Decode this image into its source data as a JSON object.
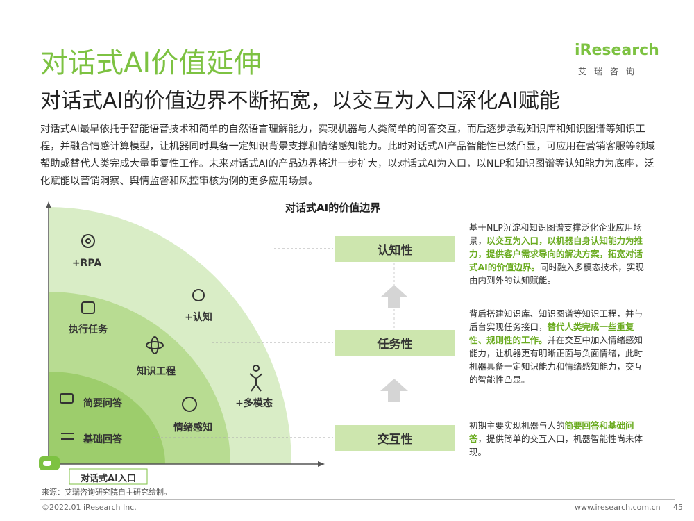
{
  "header": {
    "title": "对话式AI价值延伸",
    "subtitle": "对话式AI的价值边界不断拓宽，以交互为入口深化AI赋能",
    "logo": "iResearch",
    "logo_cn": "艾瑞咨询"
  },
  "intro": "对话式AI最早依托于智能语音技术和简单的自然语言理解能力，实现机器与人类简单的问答交互，而后逐步承载知识库和知识图谱等知识工程，并融合情感计算模型，让机器同时具备一定知识背景支撑和情绪感知能力。此时对话式AI产品智能性已然凸显，可应用在营销客服等领域帮助或替代人类完成大量重复性工作。未来对话式AI的产品边界将进一步扩大，以对话式AI为入口，以NLP和知识图谱等认知能力为底座，泛化赋能以营销洞察、舆情监督和风控审核为例的更多应用场景。",
  "diagram": {
    "title": "对话式AI的价值边界",
    "zones": [
      "+RPA",
      "执行任务",
      "+认知",
      "知识工程",
      "+多模态",
      "简要问答",
      "情绪感知",
      "基础回答"
    ],
    "entry": "对话式AI入口",
    "levels": [
      {
        "name": "认知性",
        "before": "基于NLP沉淀和知识图谱支撑泛化企业应用场景，",
        "highlight": "以交互为入口，以机器自身认知能力为推力，提供客户需求导向的解决方案，拓宽对话式AI的价值边界。",
        "after": "同时融入多模态技术，实现由内到外的认知赋能。"
      },
      {
        "name": "任务性",
        "before": "背后搭建知识库、知识图谱等知识工程，并与后台实现任务接口，",
        "highlight": "替代人类完成一些重复性、规则性的工作。",
        "after": "并在交互中加入情绪感知能力，让机器更有明晰正面与负面情绪，此时机器具备一定知识能力和情绪感知能力，交互的智能性凸显。"
      },
      {
        "name": "交互性",
        "before": "初期主要实现机器与人的",
        "highlight": "简要回答和基础问答",
        "after": "，提供简单的交互入口，机器智能性尚未体现。"
      }
    ]
  },
  "footer": {
    "source": "来源：艾瑞咨询研究院自主研究绘制。",
    "copyright": "©2022.01 iResearch Inc.",
    "url": "www.iresearch.com.cn",
    "page": "45"
  }
}
